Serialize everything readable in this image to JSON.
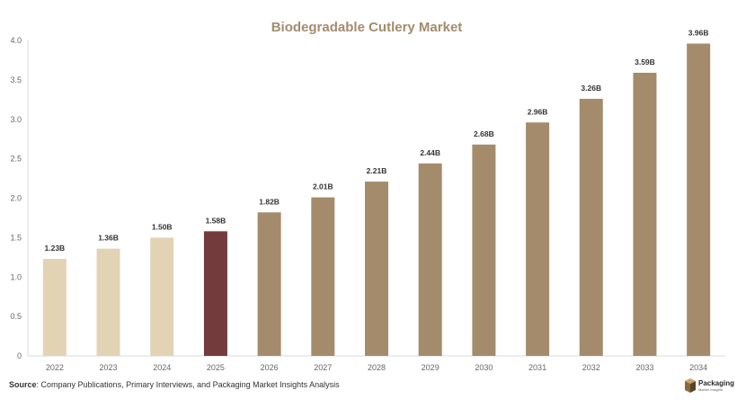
{
  "chart_data": {
    "type": "bar",
    "title": "Biodegradable Cutlery Market",
    "xlabel": "",
    "ylabel": "",
    "categories": [
      "2022",
      "2023",
      "2024",
      "2025",
      "2026",
      "2027",
      "2028",
      "2029",
      "2030",
      "2031",
      "2032",
      "2033",
      "2034"
    ],
    "values": [
      1.23,
      1.36,
      1.5,
      1.58,
      1.82,
      2.01,
      2.21,
      2.44,
      2.68,
      2.96,
      3.26,
      3.59,
      3.96
    ],
    "data_labels": [
      "1.23B",
      "1.36B",
      "1.50B",
      "1.58B",
      "1.82B",
      "2.01B",
      "2.21B",
      "2.44B",
      "2.68B",
      "2.96B",
      "3.26B",
      "3.59B",
      "3.96B"
    ],
    "ylim": [
      0,
      4.0
    ],
    "yticks": [
      "0",
      "0.5",
      "1.0",
      "1.5",
      "2.0",
      "2.5",
      "3.0",
      "3.5",
      "4.0"
    ],
    "grid": false,
    "legend": "none",
    "colors": {
      "historical": "#e3d3b5",
      "current": "#733b3b",
      "forecast": "#a48b6c",
      "title": "#a48b6c",
      "axis": "#d9d9d9"
    },
    "bar_color_keys": [
      "historical",
      "historical",
      "historical",
      "current",
      "forecast",
      "forecast",
      "forecast",
      "forecast",
      "forecast",
      "forecast",
      "forecast",
      "forecast",
      "forecast"
    ]
  },
  "footer": {
    "source_label": "Source",
    "source_text": ": Company Publications, Primary Interviews, and Packaging Market Insights Analysis"
  },
  "logo": {
    "name": "Packaging",
    "tagline": "Market Insights",
    "icon": "box-logo-icon"
  }
}
